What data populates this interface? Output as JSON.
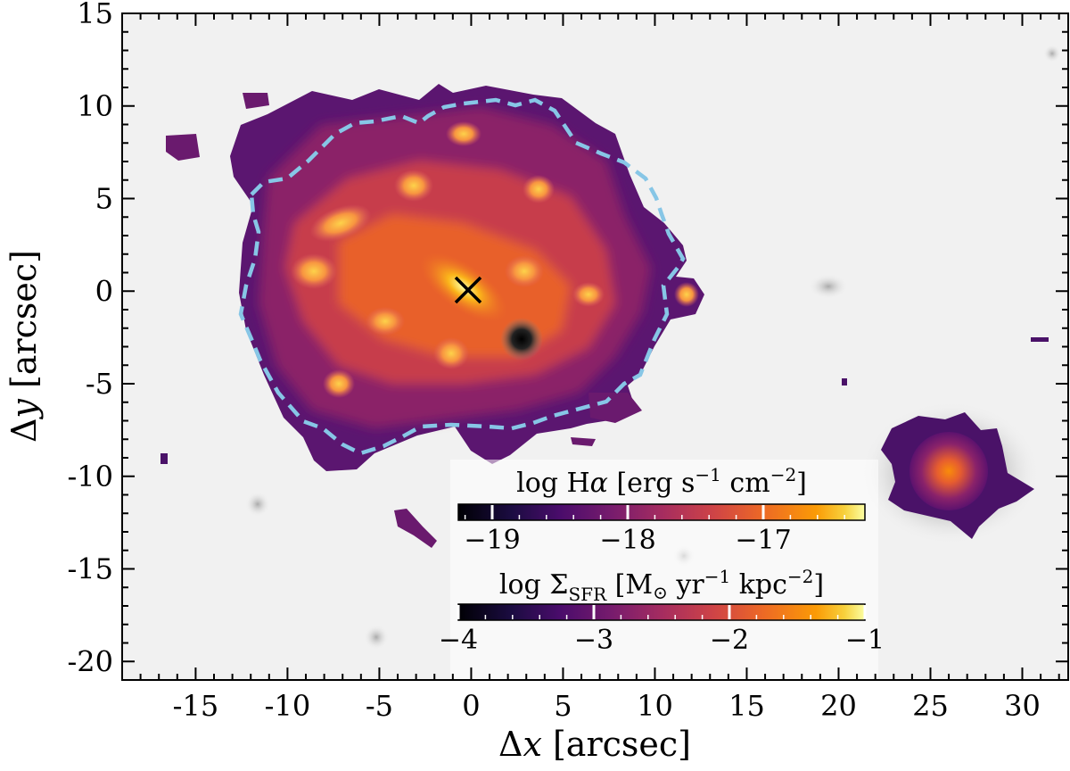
{
  "figure": {
    "xlabel_parts": {
      "delta": "Δ",
      "var": "x",
      "unit": " [arcsec]"
    },
    "ylabel_parts": {
      "delta": "Δ",
      "var": "y",
      "unit": " [arcsec]"
    },
    "xlim": [
      -19,
      32.5
    ],
    "ylim": [
      -21,
      15
    ],
    "x_ticks": [
      -15,
      -10,
      -5,
      0,
      5,
      10,
      15,
      20,
      25,
      30
    ],
    "x_tick_labels": [
      "-15",
      "-10",
      "-5",
      "0",
      "5",
      "10",
      "15",
      "20",
      "25",
      "30"
    ],
    "y_ticks": [
      15,
      10,
      5,
      0,
      -5,
      -10,
      -15,
      -20
    ],
    "y_tick_labels": [
      "15",
      "10",
      "5",
      "0",
      "-5",
      "-10",
      "-15",
      "-20"
    ],
    "background": "greyscale optical image",
    "overlay_colormap": "inferno",
    "contour_color": "#87c6e6",
    "center_marker": {
      "symbol": "×",
      "x": 0,
      "y": 0
    },
    "colorbars": [
      {
        "label_parts": {
          "pre": "log H",
          "greek": "α",
          "rest": " [erg s",
          "exp1": "−1",
          "mid": " cm",
          "exp2": "−2",
          "end": "]"
        },
        "range": [
          -19.25,
          -16.25
        ],
        "major_ticks": [
          -19,
          -18,
          -17
        ],
        "tick_labels": [
          "−19",
          "−18",
          "−17"
        ]
      },
      {
        "label_parts": {
          "pre": "log Σ",
          "sub": "SFR",
          "rest": " [M",
          "sun": "⊙",
          "mid": " yr",
          "exp1": "−1",
          "mid2": " kpc",
          "exp2": "−2",
          "end": "]"
        },
        "range": [
          -4,
          -1
        ],
        "major_ticks": [
          -4,
          -3,
          -2,
          -1
        ],
        "tick_labels": [
          "−4",
          "−3",
          "−2",
          "−1"
        ]
      }
    ]
  }
}
